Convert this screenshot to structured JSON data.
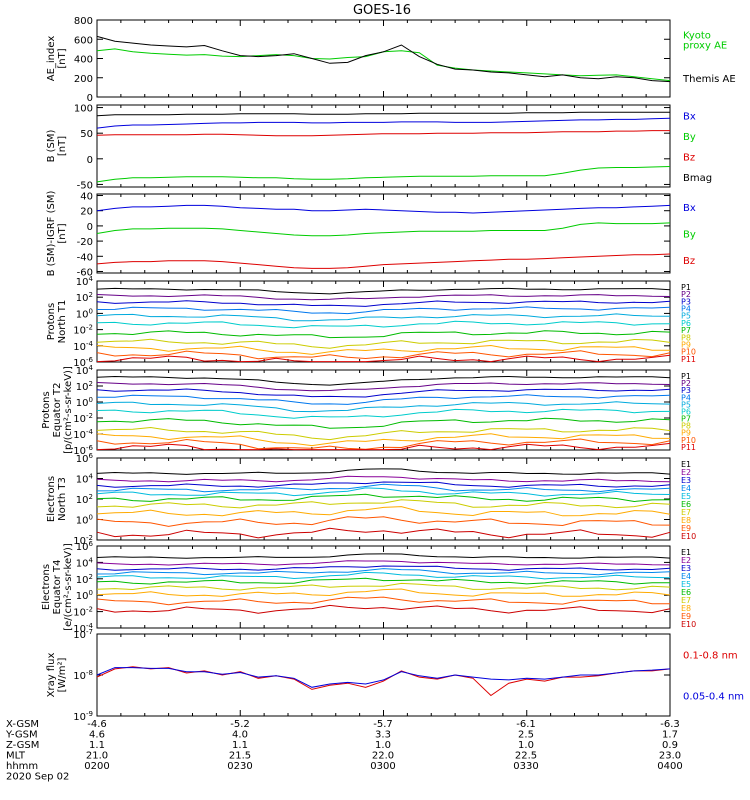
{
  "title": "GOES-16",
  "colors": {
    "black": "#000000",
    "red": "#dd0000",
    "green": "#00cc00",
    "blue": "#0000dd",
    "P": [
      "#000000",
      "#660088",
      "#0000cc",
      "#0077ee",
      "#00aadd",
      "#00cccc",
      "#00bb00",
      "#cccc00",
      "#ffaa00",
      "#ff5500",
      "#dd0000",
      "#990000"
    ],
    "E": [
      "#000000",
      "#880099",
      "#0000cc",
      "#0088ee",
      "#00bbdd",
      "#00bb00",
      "#cccc00",
      "#ffaa00",
      "#ff5500",
      "#cc0000",
      "#990000"
    ]
  },
  "chart_data": [
    {
      "id": "ae",
      "type": "line",
      "ylabel": [
        "AE_index",
        "[nT]"
      ],
      "ylim": [
        0,
        800
      ],
      "yticks": [
        "800",
        "600",
        "400",
        "200",
        "0"
      ],
      "yticks_values": [
        800,
        600,
        400,
        200,
        0
      ],
      "series": [
        {
          "name": "Kyoto proxy AE",
          "legend_lines": [
            "Kyoto",
            "proxy AE"
          ],
          "color": "#00cc00",
          "values": [
            480,
            500,
            470,
            455,
            445,
            435,
            440,
            425,
            420,
            430,
            440,
            430,
            400,
            395,
            410,
            420,
            470,
            480,
            460,
            330,
            300,
            280,
            270,
            260,
            250,
            240,
            230,
            220,
            225,
            230,
            210,
            190,
            170
          ]
        },
        {
          "name": "Themis AE",
          "legend_lines": [
            "Themis AE"
          ],
          "color": "#000000",
          "values": [
            630,
            580,
            560,
            540,
            530,
            520,
            535,
            480,
            430,
            420,
            430,
            450,
            400,
            350,
            360,
            430,
            470,
            540,
            420,
            340,
            290,
            280,
            260,
            250,
            230,
            210,
            230,
            200,
            190,
            210,
            200,
            170,
            160
          ]
        }
      ]
    },
    {
      "id": "bsm",
      "type": "line",
      "ylabel": [
        "B (SM)",
        "[nT]"
      ],
      "ylim": [
        -55,
        105
      ],
      "yticks": [
        "100",
        "50",
        "0",
        "-50"
      ],
      "yticks_values": [
        100,
        50,
        0,
        -50
      ],
      "series": [
        {
          "name": "Bx",
          "legend_lines": [
            "Bx"
          ],
          "color": "#0000dd",
          "values": [
            60,
            64,
            66,
            66,
            67,
            68,
            69,
            70,
            70,
            71,
            71,
            71,
            70,
            70,
            71,
            71,
            71,
            72,
            72,
            72,
            71,
            71,
            71,
            72,
            73,
            74,
            75,
            76,
            76,
            77,
            77,
            78,
            79
          ]
        },
        {
          "name": "By",
          "legend_lines": [
            "By"
          ],
          "color": "#00cc00",
          "values": [
            -45,
            -40,
            -37,
            -37,
            -36,
            -35,
            -35,
            -35,
            -36,
            -37,
            -37,
            -39,
            -40,
            -40,
            -39,
            -37,
            -36,
            -35,
            -34,
            -34,
            -34,
            -34,
            -33,
            -33,
            -33,
            -33,
            -28,
            -22,
            -18,
            -17,
            -17,
            -16,
            -15
          ]
        },
        {
          "name": "Bz",
          "legend_lines": [
            "Bz"
          ],
          "color": "#dd0000",
          "values": [
            46,
            47,
            47,
            47,
            47,
            47,
            48,
            48,
            47,
            46,
            45,
            45,
            45,
            46,
            47,
            48,
            49,
            49,
            49,
            50,
            50,
            50,
            51,
            51,
            51,
            52,
            53,
            53,
            53,
            54,
            54,
            55,
            55
          ]
        },
        {
          "name": "Bmag",
          "legend_lines": [
            "Bmag"
          ],
          "color": "#000000",
          "values": [
            84,
            86,
            86,
            86,
            86,
            87,
            87,
            87,
            88,
            88,
            88,
            88,
            87,
            87,
            87,
            88,
            88,
            88,
            89,
            89,
            89,
            89,
            89,
            89,
            90,
            90,
            90,
            91,
            91,
            91,
            91,
            91,
            91
          ]
        }
      ]
    },
    {
      "id": "bigrf",
      "type": "line",
      "ylabel": [
        "B (SM)-IGRF (SM)",
        "[nT]"
      ],
      "ylim": [
        -62,
        42
      ],
      "yticks": [
        "40",
        "20",
        "0",
        "-20",
        "-40",
        "-60"
      ],
      "yticks_values": [
        40,
        20,
        0,
        -20,
        -40,
        -60
      ],
      "series": [
        {
          "name": "Bx",
          "legend_lines": [
            "Bx"
          ],
          "color": "#0000dd",
          "values": [
            20,
            23,
            25,
            25,
            26,
            27,
            27,
            26,
            24,
            23,
            22,
            22,
            20,
            20,
            21,
            22,
            21,
            20,
            19,
            18,
            18,
            17,
            18,
            19,
            20,
            21,
            22,
            23,
            24,
            24,
            25,
            26,
            27
          ]
        },
        {
          "name": "By",
          "legend_lines": [
            "By"
          ],
          "color": "#00cc00",
          "values": [
            -10,
            -6,
            -4,
            -4,
            -3,
            -3,
            -3,
            -4,
            -6,
            -8,
            -10,
            -12,
            -13,
            -13,
            -12,
            -10,
            -9,
            -8,
            -7,
            -7,
            -7,
            -7,
            -6,
            -6,
            -6,
            -6,
            -3,
            2,
            4,
            3,
            3,
            3,
            4
          ]
        },
        {
          "name": "Bz",
          "legend_lines": [
            "Bz"
          ],
          "color": "#dd0000",
          "values": [
            -50,
            -48,
            -47,
            -47,
            -46,
            -46,
            -46,
            -47,
            -49,
            -51,
            -53,
            -55,
            -56,
            -56,
            -55,
            -53,
            -51,
            -50,
            -49,
            -48,
            -47,
            -46,
            -45,
            -44,
            -44,
            -43,
            -42,
            -41,
            -40,
            -39,
            -38,
            -38,
            -37
          ]
        }
      ]
    },
    {
      "id": "p1",
      "type": "line",
      "log": true,
      "ylabel": [
        "Protons",
        "North T1"
      ],
      "ylim": [
        -6,
        4
      ],
      "yticks": [
        "10^4",
        "10^2",
        "10^0",
        "10^-2",
        "10^-4",
        "10^-6"
      ],
      "yticks_values": [
        4,
        2,
        0,
        -2,
        -4,
        -6
      ],
      "series_labels": [
        "P1",
        "P2",
        "P3",
        "P4",
        "P5",
        "P6",
        "P7",
        "P8",
        "P9",
        "P10",
        "P11"
      ],
      "levels": [
        3.0,
        2.2,
        1.4,
        0.6,
        -0.3,
        -1.2,
        -2.4,
        -3.5,
        -4.3,
        -5.0,
        -5.6
      ],
      "dip_center": 0.4,
      "dip_depth": 0.5,
      "dip_width": 0.25
    },
    {
      "id": "p2",
      "type": "line",
      "log": true,
      "ylabel": [
        "Protons",
        "Equator T2",
        "[p/(cm²-s-sr-keV)]"
      ],
      "ylim": [
        -6,
        4
      ],
      "yticks": [
        "10^4",
        "10^2",
        "10^0",
        "10^-2",
        "10^-4",
        "10^-6"
      ],
      "yticks_values": [
        4,
        2,
        0,
        -2,
        -4,
        -6
      ],
      "series_labels": [
        "P1",
        "P2",
        "P3",
        "P4",
        "P5",
        "P6",
        "P7",
        "P8",
        "P9",
        "P10",
        "P11"
      ],
      "levels": [
        3.1,
        2.3,
        1.5,
        0.7,
        -0.2,
        -1.1,
        -2.3,
        -3.5,
        -4.3,
        -5.0,
        -5.6
      ],
      "dip_center": 0.4,
      "dip_depth": 0.9,
      "dip_width": 0.28
    },
    {
      "id": "e3",
      "type": "line",
      "log": true,
      "ylabel": [
        "Electrons",
        "North T3"
      ],
      "ylim": [
        -2,
        6
      ],
      "yticks": [
        "10^6",
        "10^4",
        "10^2",
        "10^0",
        "10^-2"
      ],
      "yticks_values": [
        6,
        4,
        2,
        0,
        -2
      ],
      "series_labels": [
        "E1",
        "E2",
        "E3",
        "E4",
        "E5",
        "E6",
        "E7",
        "E8",
        "E9",
        "E10"
      ],
      "levels": [
        4.5,
        3.8,
        3.3,
        2.9,
        2.5,
        2.0,
        1.4,
        0.6,
        -0.3,
        -1.4
      ],
      "dip_center": 0.5,
      "dip_depth": -0.4,
      "dip_width": 0.2
    },
    {
      "id": "e4",
      "type": "line",
      "log": true,
      "ylabel": [
        "Electrons",
        "Equator T4",
        "[e/(cm²-s-sr-keV)]"
      ],
      "ylim": [
        -4,
        6
      ],
      "yticks": [
        "10^6",
        "10^4",
        "10^2",
        "10^0",
        "10^-2",
        "10^-4"
      ],
      "yticks_values": [
        6,
        4,
        2,
        0,
        -2,
        -4
      ],
      "series_labels": [
        "E1",
        "E2",
        "E3",
        "E4",
        "E5",
        "E6",
        "E7",
        "E8",
        "E9",
        "E10"
      ],
      "levels": [
        4.6,
        3.8,
        3.2,
        2.7,
        2.2,
        1.6,
        0.9,
        0.1,
        -0.8,
        -1.8
      ],
      "dip_center": 0.5,
      "dip_depth": -0.4,
      "dip_width": 0.2
    },
    {
      "id": "xray",
      "type": "line",
      "log": true,
      "ylabel": [
        "Xray flux",
        "[W/m²]"
      ],
      "ylim": [
        -9,
        -7
      ],
      "yticks": [
        "10^-7",
        "10^-8",
        "10^-9"
      ],
      "yticks_values": [
        -7,
        -8,
        -9
      ],
      "series": [
        {
          "name": "0.1-0.8 nm",
          "legend_lines": [
            "0.1-0.8 nm"
          ],
          "color": "#dd0000",
          "values": [
            -8.05,
            -7.85,
            -7.8,
            -7.85,
            -7.82,
            -7.95,
            -7.9,
            -8.0,
            -7.92,
            -8.08,
            -8.02,
            -8.1,
            -8.35,
            -8.25,
            -8.2,
            -8.3,
            -8.15,
            -7.9,
            -8.05,
            -8.1,
            -8.0,
            -8.08,
            -8.5,
            -8.2,
            -8.1,
            -8.15,
            -8.05,
            -8.05,
            -8.02,
            -7.95,
            -7.9,
            -7.9,
            -7.85
          ]
        },
        {
          "name": "0.05-0.4 nm",
          "legend_lines": [
            "0.05-0.4 nm"
          ],
          "color": "#0000dd",
          "values": [
            -8.0,
            -7.82,
            -7.82,
            -7.84,
            -7.84,
            -7.92,
            -7.92,
            -7.98,
            -7.94,
            -8.05,
            -8.02,
            -8.08,
            -8.3,
            -8.22,
            -8.18,
            -8.22,
            -8.12,
            -7.92,
            -8.02,
            -8.08,
            -8.0,
            -8.05,
            -8.1,
            -8.12,
            -8.08,
            -8.1,
            -8.05,
            -8.0,
            -8.0,
            -7.95,
            -7.9,
            -7.88,
            -7.85
          ]
        }
      ]
    }
  ],
  "orbit": {
    "rows": [
      {
        "label": "X-GSM",
        "values": [
          "-4.6",
          "-5.2",
          "-5.7",
          "-6.1",
          "-6.3"
        ]
      },
      {
        "label": "Y-GSM",
        "values": [
          "4.6",
          "4.0",
          "3.3",
          "2.5",
          "1.7"
        ]
      },
      {
        "label": "Z-GSM",
        "values": [
          "1.1",
          "1.1",
          "1.0",
          "1.0",
          "0.9"
        ]
      },
      {
        "label": "MLT",
        "values": [
          "21.0",
          "21.5",
          "22.0",
          "22.5",
          "23.0"
        ]
      },
      {
        "label": "hhmm",
        "values": [
          "0200",
          "0230",
          "0300",
          "0330",
          "0400"
        ]
      }
    ],
    "date": "2020 Sep 02"
  }
}
